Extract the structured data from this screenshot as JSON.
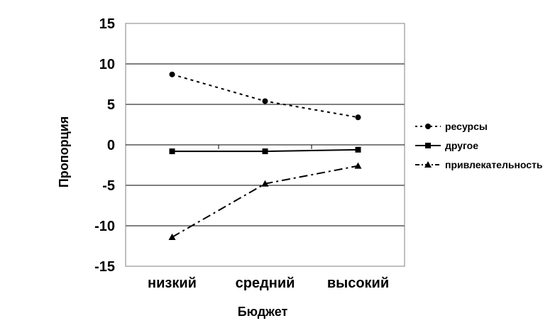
{
  "chart_data": {
    "type": "line",
    "categories": [
      "низкий",
      "средний",
      "высокий"
    ],
    "series": [
      {
        "name": "ресурсы",
        "values": [
          8.7,
          5.4,
          3.4
        ],
        "line_style": "dotted",
        "marker": "circle"
      },
      {
        "name": "другое",
        "values": [
          -0.8,
          -0.8,
          -0.6
        ],
        "line_style": "solid",
        "marker": "square"
      },
      {
        "name": "привлекательность",
        "values": [
          -11.4,
          -4.8,
          -2.6
        ],
        "line_style": "dash-dot",
        "marker": "triangle"
      }
    ],
    "xlabel": "Бюджет",
    "ylabel": "Пропорция",
    "ylim": [
      -15,
      15
    ],
    "yticks": [
      15,
      10,
      5,
      0,
      -5,
      -10,
      -15
    ],
    "grid": true,
    "legend_position": "right",
    "color": "#000000"
  }
}
